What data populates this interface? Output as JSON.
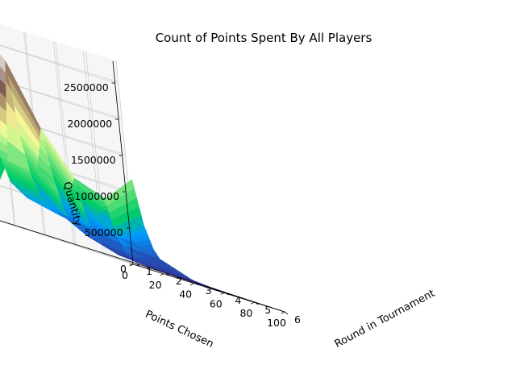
{
  "chart_data": {
    "type": "surface3d",
    "title": "Count of Points Spent By All Players",
    "xlabel": "Points Chosen",
    "ylabel": "Round in Tournament",
    "zlabel": "Quantity",
    "x_ticks": [
      "0",
      "20",
      "40",
      "60",
      "80",
      "100"
    ],
    "y_ticks": [
      "1",
      "2",
      "3",
      "4",
      "5",
      "6"
    ],
    "z_ticks": [
      "0",
      "500000",
      "1000000",
      "1500000",
      "2000000",
      "2500000"
    ],
    "xlim": [
      0,
      100
    ],
    "ylim": [
      1,
      6
    ],
    "zlim": [
      0,
      2800000
    ],
    "colormap": "terrain",
    "grid": true,
    "series": [
      {
        "x": [
          0,
          5,
          10,
          15,
          20,
          30,
          50,
          75,
          100
        ],
        "values": [
          0,
          2700000,
          1500000,
          900000,
          600000,
          450000,
          350000,
          300000,
          280000
        ]
      },
      {
        "x": [
          0,
          5,
          10,
          15,
          20,
          30,
          50,
          75,
          100
        ],
        "values": [
          900000,
          2300000,
          1300000,
          800000,
          550000,
          400000,
          280000,
          200000,
          150000
        ]
      },
      {
        "x": [
          0,
          5,
          10,
          15,
          20,
          30,
          50,
          75,
          100
        ],
        "values": [
          850000,
          1500000,
          900000,
          500000,
          300000,
          180000,
          80000,
          40000,
          10000
        ]
      },
      {
        "x": [
          0,
          5,
          10,
          15,
          20,
          30,
          50,
          75,
          100
        ],
        "values": [
          700000,
          950000,
          500000,
          250000,
          150000,
          60000,
          20000,
          5000,
          0
        ]
      },
      {
        "x": [
          0,
          5,
          10,
          15,
          20,
          30,
          50,
          75,
          100
        ],
        "values": [
          550000,
          800000,
          350000,
          150000,
          80000,
          30000,
          10000,
          0,
          0
        ]
      },
      {
        "x": [
          0,
          5,
          10,
          15,
          20,
          30,
          50,
          75,
          100
        ],
        "values": [
          250000,
          1200000,
          600000,
          300000,
          150000,
          60000,
          20000,
          5000,
          0
        ]
      }
    ]
  }
}
